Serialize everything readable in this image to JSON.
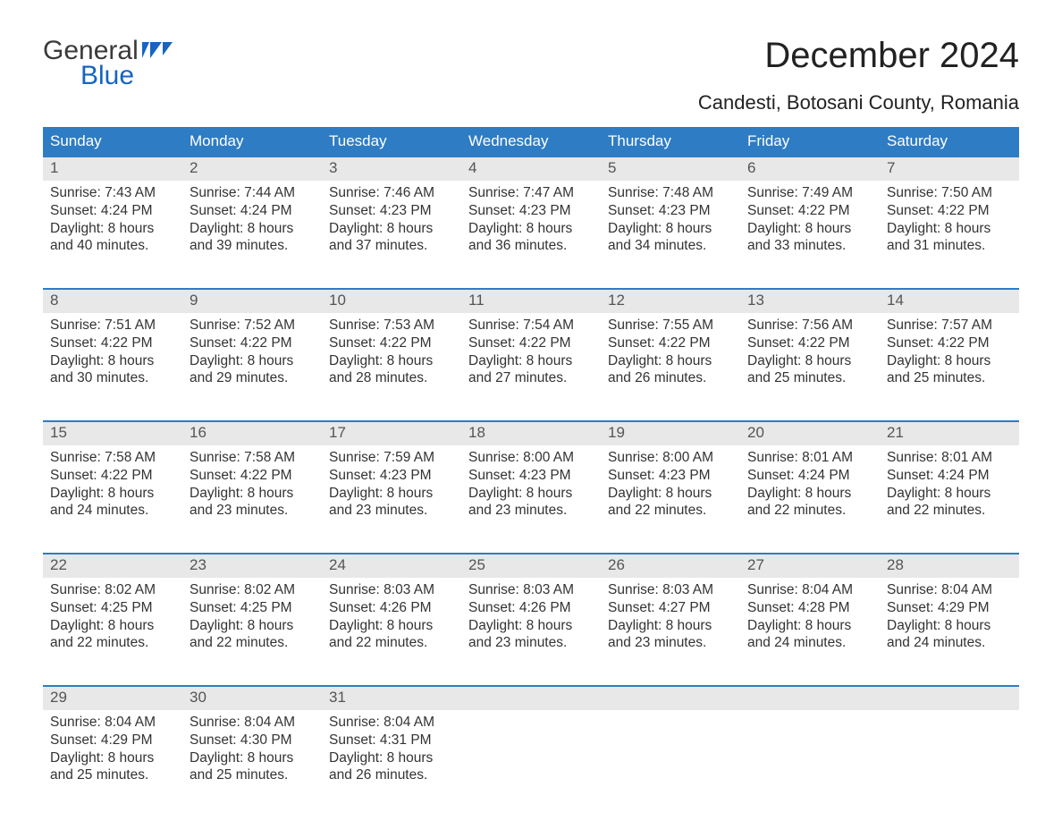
{
  "brand": {
    "general": "General",
    "blue": "Blue",
    "flag_color": "#1565c0"
  },
  "title": {
    "month": "December 2024",
    "location": "Candesti, Botosani County, Romania"
  },
  "colors": {
    "header_bg": "#2e7cc4",
    "header_text": "#ffffff",
    "daynum_bg": "#e8e8e8",
    "daynum_text": "#555555",
    "cell_text": "#333333",
    "divider": "#2e7cc4",
    "page_bg": "#ffffff",
    "brand_blue": "#1565c0"
  },
  "font": {
    "family": "Arial",
    "title_size_pt": 30,
    "location_size_pt": 17,
    "header_size_pt": 13,
    "body_size_pt": 12
  },
  "calendar": {
    "type": "table",
    "weekdays": [
      "Sunday",
      "Monday",
      "Tuesday",
      "Wednesday",
      "Thursday",
      "Friday",
      "Saturday"
    ],
    "weeks": [
      [
        {
          "n": "1",
          "sunrise": "Sunrise: 7:43 AM",
          "sunset": "Sunset: 4:24 PM",
          "d1": "Daylight: 8 hours",
          "d2": "and 40 minutes."
        },
        {
          "n": "2",
          "sunrise": "Sunrise: 7:44 AM",
          "sunset": "Sunset: 4:24 PM",
          "d1": "Daylight: 8 hours",
          "d2": "and 39 minutes."
        },
        {
          "n": "3",
          "sunrise": "Sunrise: 7:46 AM",
          "sunset": "Sunset: 4:23 PM",
          "d1": "Daylight: 8 hours",
          "d2": "and 37 minutes."
        },
        {
          "n": "4",
          "sunrise": "Sunrise: 7:47 AM",
          "sunset": "Sunset: 4:23 PM",
          "d1": "Daylight: 8 hours",
          "d2": "and 36 minutes."
        },
        {
          "n": "5",
          "sunrise": "Sunrise: 7:48 AM",
          "sunset": "Sunset: 4:23 PM",
          "d1": "Daylight: 8 hours",
          "d2": "and 34 minutes."
        },
        {
          "n": "6",
          "sunrise": "Sunrise: 7:49 AM",
          "sunset": "Sunset: 4:22 PM",
          "d1": "Daylight: 8 hours",
          "d2": "and 33 minutes."
        },
        {
          "n": "7",
          "sunrise": "Sunrise: 7:50 AM",
          "sunset": "Sunset: 4:22 PM",
          "d1": "Daylight: 8 hours",
          "d2": "and 31 minutes."
        }
      ],
      [
        {
          "n": "8",
          "sunrise": "Sunrise: 7:51 AM",
          "sunset": "Sunset: 4:22 PM",
          "d1": "Daylight: 8 hours",
          "d2": "and 30 minutes."
        },
        {
          "n": "9",
          "sunrise": "Sunrise: 7:52 AM",
          "sunset": "Sunset: 4:22 PM",
          "d1": "Daylight: 8 hours",
          "d2": "and 29 minutes."
        },
        {
          "n": "10",
          "sunrise": "Sunrise: 7:53 AM",
          "sunset": "Sunset: 4:22 PM",
          "d1": "Daylight: 8 hours",
          "d2": "and 28 minutes."
        },
        {
          "n": "11",
          "sunrise": "Sunrise: 7:54 AM",
          "sunset": "Sunset: 4:22 PM",
          "d1": "Daylight: 8 hours",
          "d2": "and 27 minutes."
        },
        {
          "n": "12",
          "sunrise": "Sunrise: 7:55 AM",
          "sunset": "Sunset: 4:22 PM",
          "d1": "Daylight: 8 hours",
          "d2": "and 26 minutes."
        },
        {
          "n": "13",
          "sunrise": "Sunrise: 7:56 AM",
          "sunset": "Sunset: 4:22 PM",
          "d1": "Daylight: 8 hours",
          "d2": "and 25 minutes."
        },
        {
          "n": "14",
          "sunrise": "Sunrise: 7:57 AM",
          "sunset": "Sunset: 4:22 PM",
          "d1": "Daylight: 8 hours",
          "d2": "and 25 minutes."
        }
      ],
      [
        {
          "n": "15",
          "sunrise": "Sunrise: 7:58 AM",
          "sunset": "Sunset: 4:22 PM",
          "d1": "Daylight: 8 hours",
          "d2": "and 24 minutes."
        },
        {
          "n": "16",
          "sunrise": "Sunrise: 7:58 AM",
          "sunset": "Sunset: 4:22 PM",
          "d1": "Daylight: 8 hours",
          "d2": "and 23 minutes."
        },
        {
          "n": "17",
          "sunrise": "Sunrise: 7:59 AM",
          "sunset": "Sunset: 4:23 PM",
          "d1": "Daylight: 8 hours",
          "d2": "and 23 minutes."
        },
        {
          "n": "18",
          "sunrise": "Sunrise: 8:00 AM",
          "sunset": "Sunset: 4:23 PM",
          "d1": "Daylight: 8 hours",
          "d2": "and 23 minutes."
        },
        {
          "n": "19",
          "sunrise": "Sunrise: 8:00 AM",
          "sunset": "Sunset: 4:23 PM",
          "d1": "Daylight: 8 hours",
          "d2": "and 22 minutes."
        },
        {
          "n": "20",
          "sunrise": "Sunrise: 8:01 AM",
          "sunset": "Sunset: 4:24 PM",
          "d1": "Daylight: 8 hours",
          "d2": "and 22 minutes."
        },
        {
          "n": "21",
          "sunrise": "Sunrise: 8:01 AM",
          "sunset": "Sunset: 4:24 PM",
          "d1": "Daylight: 8 hours",
          "d2": "and 22 minutes."
        }
      ],
      [
        {
          "n": "22",
          "sunrise": "Sunrise: 8:02 AM",
          "sunset": "Sunset: 4:25 PM",
          "d1": "Daylight: 8 hours",
          "d2": "and 22 minutes."
        },
        {
          "n": "23",
          "sunrise": "Sunrise: 8:02 AM",
          "sunset": "Sunset: 4:25 PM",
          "d1": "Daylight: 8 hours",
          "d2": "and 22 minutes."
        },
        {
          "n": "24",
          "sunrise": "Sunrise: 8:03 AM",
          "sunset": "Sunset: 4:26 PM",
          "d1": "Daylight: 8 hours",
          "d2": "and 22 minutes."
        },
        {
          "n": "25",
          "sunrise": "Sunrise: 8:03 AM",
          "sunset": "Sunset: 4:26 PM",
          "d1": "Daylight: 8 hours",
          "d2": "and 23 minutes."
        },
        {
          "n": "26",
          "sunrise": "Sunrise: 8:03 AM",
          "sunset": "Sunset: 4:27 PM",
          "d1": "Daylight: 8 hours",
          "d2": "and 23 minutes."
        },
        {
          "n": "27",
          "sunrise": "Sunrise: 8:04 AM",
          "sunset": "Sunset: 4:28 PM",
          "d1": "Daylight: 8 hours",
          "d2": "and 24 minutes."
        },
        {
          "n": "28",
          "sunrise": "Sunrise: 8:04 AM",
          "sunset": "Sunset: 4:29 PM",
          "d1": "Daylight: 8 hours",
          "d2": "and 24 minutes."
        }
      ],
      [
        {
          "n": "29",
          "sunrise": "Sunrise: 8:04 AM",
          "sunset": "Sunset: 4:29 PM",
          "d1": "Daylight: 8 hours",
          "d2": "and 25 minutes."
        },
        {
          "n": "30",
          "sunrise": "Sunrise: 8:04 AM",
          "sunset": "Sunset: 4:30 PM",
          "d1": "Daylight: 8 hours",
          "d2": "and 25 minutes."
        },
        {
          "n": "31",
          "sunrise": "Sunrise: 8:04 AM",
          "sunset": "Sunset: 4:31 PM",
          "d1": "Daylight: 8 hours",
          "d2": "and 26 minutes."
        },
        null,
        null,
        null,
        null
      ]
    ]
  }
}
